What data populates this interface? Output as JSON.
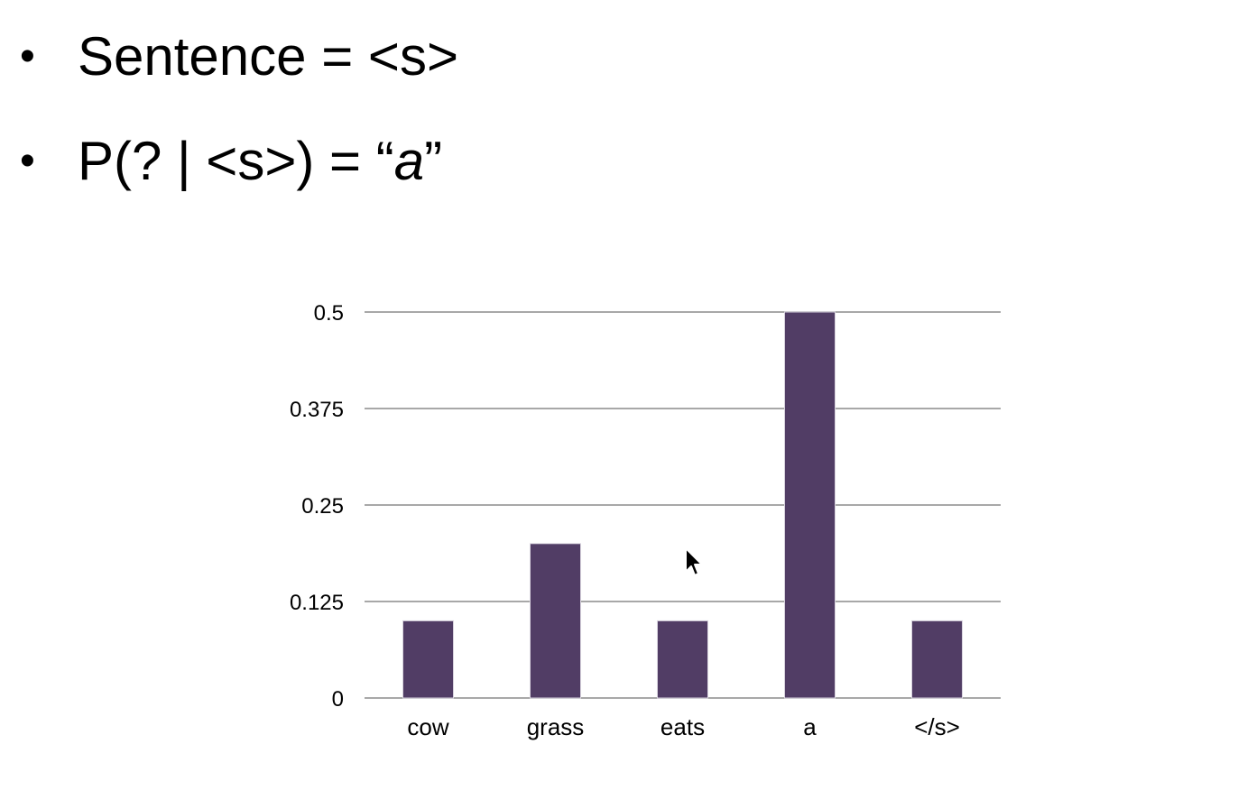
{
  "slide": {
    "bullet_glyph": "•",
    "line1": {
      "text": "Sentence = <s>"
    },
    "line2": {
      "prefix": "P(? | <s>) = “",
      "italic": "a",
      "suffix": "”"
    }
  },
  "chart_data": {
    "type": "bar",
    "categories": [
      "cow",
      "grass",
      "eats",
      "a",
      "</s>"
    ],
    "values": [
      0.1,
      0.2,
      0.1,
      0.5,
      0.1
    ],
    "yticks": [
      0,
      0.125,
      0.25,
      0.375,
      0.5
    ],
    "ytick_labels": [
      "0",
      "0.125",
      "0.25",
      "0.375",
      "0.5"
    ],
    "ylim": [
      0,
      0.5
    ],
    "grid": true,
    "legend": "none",
    "bar_color": "#513d65",
    "grid_color": "#8c8c8c"
  }
}
